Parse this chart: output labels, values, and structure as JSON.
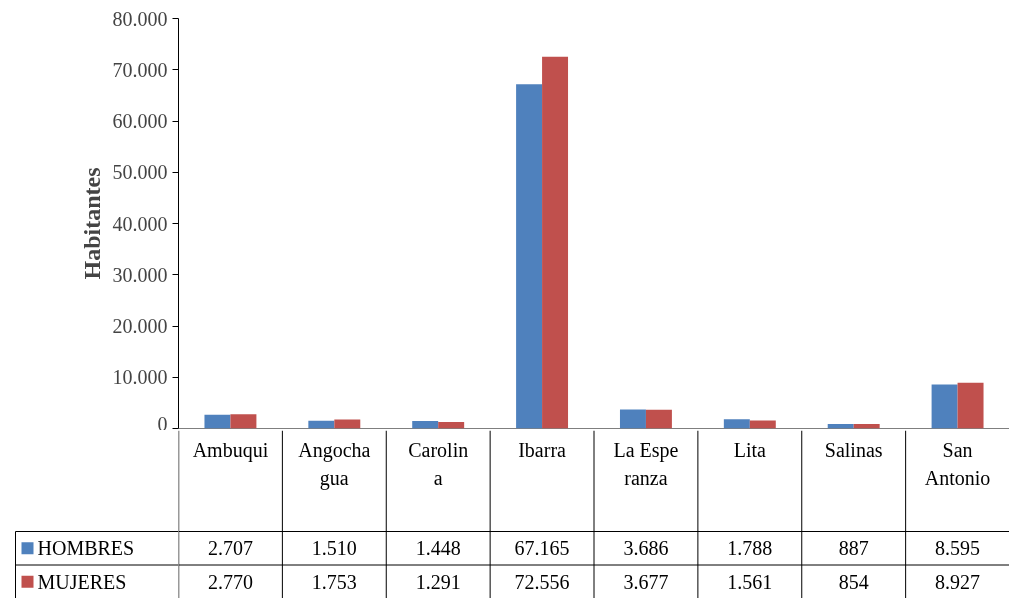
{
  "chart_data": {
    "type": "bar",
    "ylabel": "Habitantes",
    "categories": [
      "Ambuqui",
      "Angochagua",
      "Carolina",
      "Ibarra",
      "La Esperanza",
      "Lita",
      "Salinas",
      "San Antonio"
    ],
    "series": [
      {
        "name": "HOMBRES",
        "color": "#4f81bd",
        "values": [
          2707,
          1510,
          1448,
          67165,
          3686,
          1788,
          887,
          8595
        ],
        "value_labels": [
          "2.707",
          "1.510",
          "1.448",
          "67.165",
          "3.686",
          "1.788",
          "887",
          "8.595"
        ]
      },
      {
        "name": "MUJERES",
        "color": "#c0504d",
        "values": [
          2770,
          1753,
          1291,
          72556,
          3677,
          1561,
          854,
          8927
        ],
        "value_labels": [
          "2.770",
          "1.753",
          "1.291",
          "72.556",
          "3.677",
          "1.561",
          "854",
          "8.927"
        ]
      }
    ],
    "ylim": [
      0,
      80000
    ],
    "yticks": [
      {
        "value": 0,
        "label": "0"
      },
      {
        "value": 10000,
        "label": "10.000"
      },
      {
        "value": 20000,
        "label": "20.000"
      },
      {
        "value": 30000,
        "label": "30.000"
      },
      {
        "value": 40000,
        "label": "40.000"
      },
      {
        "value": 50000,
        "label": "50.000"
      },
      {
        "value": 60000,
        "label": "60.000"
      },
      {
        "value": 70000,
        "label": "70.000"
      },
      {
        "value": 80000,
        "label": "80.000"
      }
    ],
    "grid": false,
    "legend": "bottom"
  }
}
